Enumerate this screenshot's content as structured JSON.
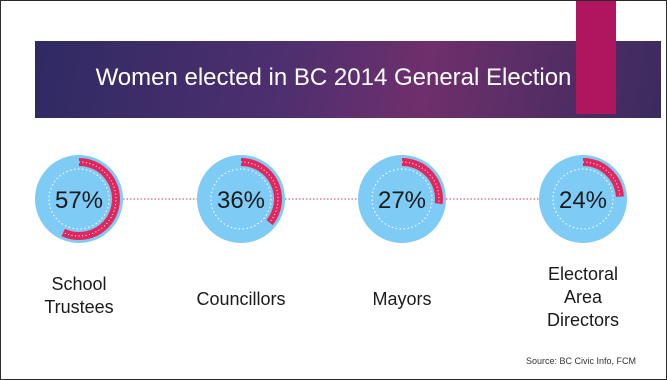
{
  "slide": {
    "title": "Women elected in BC 2014 General Election",
    "source": "Source: BC Civic Info, FCM"
  },
  "colors": {
    "banner": "#3d2c66",
    "accent": "#b0155f",
    "circle_fill": "#7ecbf6",
    "ring": "#e2275f",
    "connector": "#d6336c",
    "label_text": "#1a1a1a"
  },
  "chart_data": {
    "type": "pie",
    "title": "Women elected in BC 2014 General Election",
    "categories": [
      [
        "School",
        "Trustees"
      ],
      [
        "Councillors"
      ],
      [
        "Mayors"
      ],
      [
        "Electoral",
        "Area",
        "Directors"
      ]
    ],
    "values": [
      57,
      36,
      27,
      24
    ],
    "value_labels": [
      "57%",
      "36%",
      "27%",
      "24%"
    ],
    "unit": "%"
  }
}
